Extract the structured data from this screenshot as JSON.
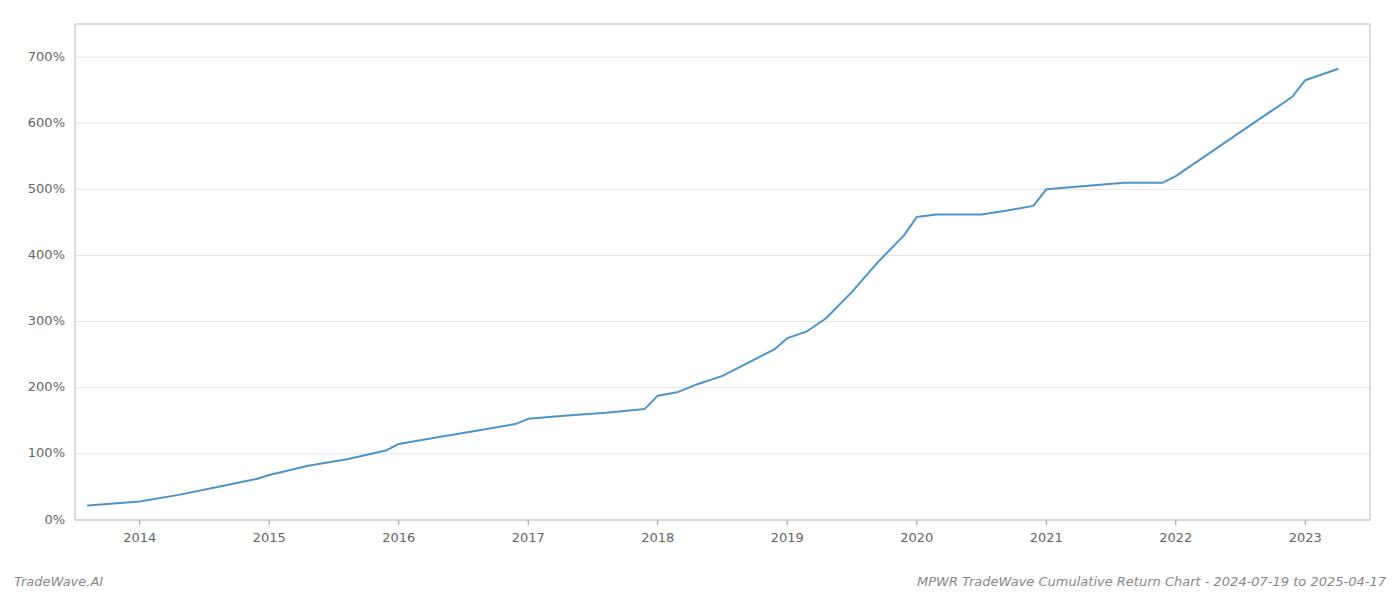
{
  "chart_data": {
    "type": "line",
    "title": "MPWR TradeWave Cumulative Return Chart - 2024-07-19 to 2025-04-17",
    "annotations": [
      "TradeWave.AI"
    ],
    "color": "#4d94c8",
    "grid": true,
    "x": [
      2013.6,
      2014.0,
      2014.3,
      2014.6,
      2014.9,
      2015.0,
      2015.3,
      2015.6,
      2015.9,
      2016.0,
      2016.3,
      2016.6,
      2016.9,
      2017.0,
      2017.3,
      2017.6,
      2017.9,
      2018.0,
      2018.15,
      2018.3,
      2018.5,
      2018.7,
      2018.9,
      2019.0,
      2019.15,
      2019.3,
      2019.5,
      2019.7,
      2019.9,
      2020.0,
      2020.15,
      2020.3,
      2020.5,
      2020.7,
      2020.9,
      2021.0,
      2021.3,
      2021.6,
      2021.9,
      2022.0,
      2022.3,
      2022.6,
      2022.9,
      2023.0,
      2023.25
    ],
    "values": [
      22,
      28,
      38,
      50,
      62,
      68,
      82,
      92,
      105,
      115,
      125,
      135,
      145,
      153,
      158,
      162,
      168,
      188,
      193,
      205,
      218,
      238,
      258,
      275,
      285,
      305,
      345,
      390,
      430,
      458,
      462,
      462,
      462,
      468,
      475,
      500,
      505,
      510,
      510,
      520,
      560,
      600,
      640,
      665,
      682
    ],
    "xlim": [
      2013.5,
      2023.5
    ],
    "xticks": [
      2014,
      2015,
      2016,
      2017,
      2018,
      2019,
      2020,
      2021,
      2022,
      2023
    ],
    "ylim": [
      0,
      750
    ],
    "yticks": [
      {
        "value": 0,
        "label": "0%"
      },
      {
        "value": 100,
        "label": "100%"
      },
      {
        "value": 200,
        "label": "200%"
      },
      {
        "value": 300,
        "label": "300%"
      },
      {
        "value": 400,
        "label": "400%"
      },
      {
        "value": 500,
        "label": "500%"
      },
      {
        "value": 600,
        "label": "600%"
      },
      {
        "value": 700,
        "label": "700%"
      }
    ]
  }
}
